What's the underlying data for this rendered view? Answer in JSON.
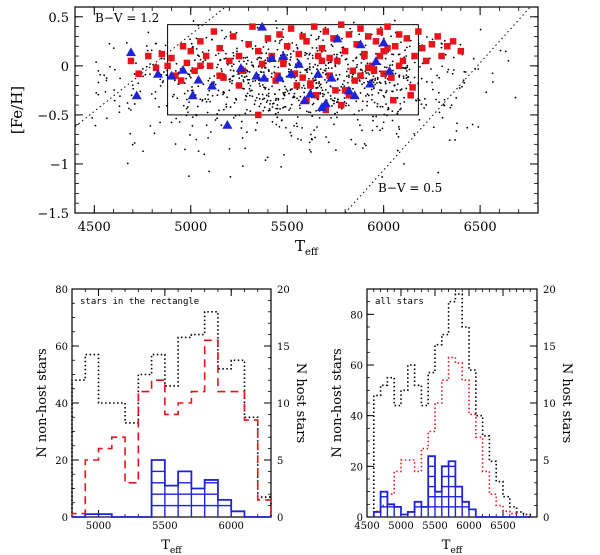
{
  "chart_data": [
    {
      "id": "top",
      "type": "scatter",
      "xlabel_main": "T",
      "xlabel_sub": "eff",
      "ylabel": "[Fe/H]",
      "xlim": [
        4400,
        6800
      ],
      "ylim": [
        -1.5,
        0.6
      ],
      "xticks": [
        4500,
        5000,
        5500,
        6000,
        6500
      ],
      "yticks": [
        0.5,
        0,
        -0.5,
        -1,
        -1.5
      ],
      "ytick_labels": [
        "0.5",
        "0",
        "−0.5",
        "−1",
        "−1.5"
      ],
      "annotations": [
        {
          "text": "B−V = 1.2"
        },
        {
          "text": "B−V = 0.5"
        }
      ],
      "rectangle": {
        "x": [
          4880,
          6180
        ],
        "y": [
          -0.5,
          0.42
        ]
      },
      "color_lines": [
        {
          "label": "B−V = 1.2",
          "points": [
            [
              4400,
              -0.62
            ],
            [
              5180,
              0.6
            ]
          ]
        },
        {
          "label": "B−V = 0.5",
          "points": [
            [
              5800,
              -1.5
            ],
            [
              6760,
              0.6
            ]
          ]
        }
      ],
      "series": [
        {
          "name": "non-host stars",
          "marker": "dot",
          "color": "#000000",
          "cloud": {
            "n": 1050,
            "x_center": 5550,
            "x_spread": 460,
            "y_center": -0.12,
            "y_spread": 0.24,
            "xlim": [
              4450,
              6700
            ],
            "ylim": [
              -1.4,
              0.48
            ]
          }
        },
        {
          "name": "host stars (red squares)",
          "marker": "square",
          "color": "#e8141b",
          "x": [
            4690,
            4730,
            4780,
            4820,
            4850,
            4880,
            4900,
            4920,
            4960,
            4980,
            5000,
            5020,
            5050,
            5080,
            5100,
            5120,
            5150,
            5170,
            5200,
            5220,
            5250,
            5270,
            5300,
            5320,
            5350,
            5370,
            5400,
            5420,
            5440,
            5460,
            5480,
            5500,
            5520,
            5540,
            5560,
            5580,
            5600,
            5620,
            5640,
            5660,
            5680,
            5700,
            5720,
            5740,
            5760,
            5780,
            5800,
            5820,
            5840,
            5860,
            5880,
            5900,
            5920,
            5940,
            5960,
            5980,
            6000,
            6020,
            6040,
            6060,
            6080,
            6100,
            6120,
            6140,
            6160,
            6180,
            6200,
            6220,
            6250,
            6280,
            6300,
            6330,
            6360,
            6400,
            5450,
            5550,
            5650,
            5750,
            5850,
            5950,
            6050,
            6150,
            5480,
            5580,
            5680,
            5780,
            5880,
            5980,
            6080,
            5620,
            5720,
            5820,
            5920,
            6020,
            5700,
            5800,
            5900,
            6000,
            5350,
            5250,
            5150,
            5050,
            4950,
            5600
          ],
          "y": [
            0.05,
            -0.08,
            0.1,
            -0.02,
            0.12,
            0.0,
            0.08,
            -0.1,
            0.2,
            0.03,
            0.15,
            -0.05,
            0.25,
            0.1,
            0.0,
            0.35,
            0.18,
            -0.12,
            0.05,
            0.3,
            0.1,
            -0.05,
            0.22,
            0.4,
            0.15,
            0.02,
            0.28,
            0.1,
            -0.15,
            0.32,
            0.05,
            0.2,
            0.38,
            -0.08,
            0.12,
            0.3,
            0.25,
            -0.2,
            0.4,
            0.1,
            0.18,
            0.35,
            -0.1,
            0.28,
            0.05,
            0.42,
            0.15,
            0.32,
            -0.05,
            0.22,
            0.38,
            0.1,
            0.3,
            0.0,
            0.25,
            0.35,
            0.15,
            0.4,
            -0.12,
            0.2,
            0.32,
            0.05,
            0.28,
            -0.3,
            0.1,
            0.35,
            0.18,
            0.05,
            0.22,
            0.3,
            0.1,
            0.2,
            0.25,
            0.15,
            -0.1,
            -0.2,
            -0.3,
            -0.25,
            -0.15,
            -0.05,
            -0.35,
            -0.22,
            0.02,
            -0.12,
            0.05,
            -0.4,
            -0.1,
            0.1,
            0.0,
            -0.18,
            0.08,
            -0.3,
            -0.02,
            0.18,
            -0.45,
            -0.25,
            0.12,
            -0.08,
            -0.5,
            -0.2,
            -0.1,
            0.0,
            -0.15,
            -0.35
          ]
        },
        {
          "name": "host stars (blue triangles)",
          "marker": "triangle",
          "color": "#1f24d8",
          "x": [
            4690,
            4720,
            4830,
            4900,
            4960,
            5010,
            5040,
            5110,
            5190,
            5260,
            5370,
            5380,
            5420,
            5460,
            5520,
            5560,
            5590,
            5620,
            5660,
            5700,
            5730,
            5760,
            5820,
            5880,
            5930,
            5960,
            6000,
            6030,
            5340,
            5480,
            5680,
            5850
          ],
          "y": [
            0.14,
            -0.3,
            -0.08,
            -0.1,
            -0.04,
            -0.3,
            -0.14,
            -0.2,
            -0.6,
            -0.02,
            0.4,
            -0.12,
            0.08,
            -0.12,
            -0.08,
            0.02,
            -0.35,
            -0.28,
            -0.08,
            -0.38,
            -0.12,
            0.28,
            -0.25,
            0.22,
            -0.18,
            0.05,
            0.24,
            -0.05,
            -0.1,
            0.1,
            -0.42,
            -0.3
          ]
        }
      ]
    },
    {
      "id": "bottom-left",
      "type": "histogram",
      "title": "stars in the rectangle",
      "xlabel_main": "T",
      "xlabel_sub": "eff",
      "ylabel_left": "N  non-host stars",
      "ylabel_right": "N  host stars",
      "xlim": [
        4800,
        6300
      ],
      "xticks": [
        5000,
        5500,
        6000
      ],
      "ylim_left": [
        0,
        80
      ],
      "yticks_left": [
        0,
        20,
        40,
        60,
        80
      ],
      "ylim_right": [
        0,
        20
      ],
      "yticks_right": [
        0,
        5,
        10,
        15,
        20
      ],
      "bin_edges": [
        4800,
        4900,
        5000,
        5100,
        5200,
        5300,
        5400,
        5500,
        5600,
        5700,
        5800,
        5900,
        6000,
        6100,
        6200,
        6300
      ],
      "series": [
        {
          "name": "non-host stars",
          "style": "dotted",
          "color": "#000000",
          "axis": "left",
          "values": [
            48,
            57,
            40,
            40,
            33,
            50,
            57,
            46,
            63,
            64,
            72,
            52,
            55,
            35,
            7
          ]
        },
        {
          "name": "host stars",
          "style": "dashed",
          "color": "#e8141b",
          "axis": "right",
          "values": [
            0.3,
            5,
            6,
            7,
            3,
            11,
            12,
            9,
            10,
            11,
            15.5,
            11,
            11,
            8.5,
            1.5
          ]
        },
        {
          "name": "host stars",
          "style": "hatched",
          "color": "#1f24d8",
          "axis": "left",
          "values": [
            0,
            1,
            1,
            0,
            0,
            0,
            20,
            11,
            16,
            10,
            13,
            6,
            2,
            0,
            0
          ]
        }
      ]
    },
    {
      "id": "bottom-right",
      "type": "histogram",
      "title": "all stars",
      "xlabel_main": "T",
      "xlabel_sub": "eff",
      "ylabel_left": "N  non-host stars",
      "ylabel_right": "N  host stars",
      "xlim": [
        4500,
        7000
      ],
      "xticks": [
        4500,
        5000,
        5500,
        6000,
        6500
      ],
      "ylim_left": [
        0,
        90
      ],
      "yticks_left": [
        0,
        20,
        40,
        60,
        80
      ],
      "ylim_right": [
        0,
        20
      ],
      "yticks_right": [
        0,
        5,
        10,
        15,
        20
      ],
      "bin_edges": [
        4600,
        4700,
        4800,
        4900,
        5000,
        5100,
        5200,
        5300,
        5400,
        5500,
        5600,
        5700,
        5800,
        5900,
        6000,
        6100,
        6200,
        6300,
        6400,
        6500,
        6600,
        6700,
        6800,
        6900
      ],
      "series": [
        {
          "name": "non-host stars",
          "style": "dotted",
          "color": "#000000",
          "axis": "left",
          "values": [
            48,
            52,
            55,
            44,
            50,
            60,
            52,
            44,
            57,
            68,
            72,
            85,
            88,
            75,
            58,
            40,
            32,
            22,
            14,
            8,
            4,
            2,
            1
          ]
        },
        {
          "name": "host stars",
          "style": "dotted",
          "color": "#e8141b",
          "axis": "right",
          "values": [
            0.5,
            1,
            2,
            4,
            5,
            5,
            4,
            6,
            7.5,
            10,
            12,
            14,
            13.5,
            12,
            9,
            7,
            4,
            2,
            1,
            0.5,
            0.3,
            0,
            0
          ]
        },
        {
          "name": "host stars",
          "style": "hatched",
          "color": "#1f24d8",
          "axis": "left",
          "values": [
            2,
            10,
            5,
            4,
            1,
            2,
            6,
            4,
            24,
            10,
            20,
            22,
            12,
            6,
            3,
            0,
            0,
            0,
            0,
            0,
            0,
            0,
            0
          ]
        }
      ]
    }
  ]
}
